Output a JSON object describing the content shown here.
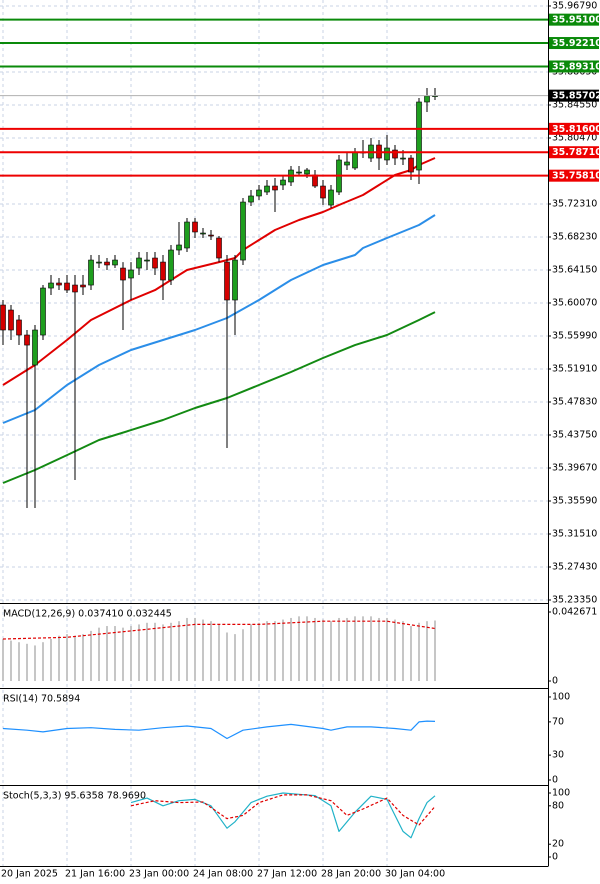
{
  "chart_data": [
    {
      "type": "candlestick",
      "categories": [
        "20 Jan 2025",
        null,
        null,
        null,
        null,
        null,
        null,
        null,
        "21 Jan 16:00",
        null,
        null,
        null,
        null,
        null,
        null,
        null,
        "23 Jan 00:00",
        null,
        null,
        null,
        null,
        null,
        null,
        null,
        "24 Jan 08:00",
        null,
        null,
        null,
        null,
        null,
        null,
        null,
        "27 Jan 12:00",
        null,
        null,
        null,
        null,
        null,
        null,
        null,
        "28 Jan 20:00",
        null,
        null,
        null,
        null,
        null,
        null,
        null,
        "30 Jan 04:00",
        null,
        null,
        null,
        null,
        null,
        null
      ],
      "open": [
        35.5982,
        35.592,
        35.5797,
        35.5611,
        35.524,
        35.5611,
        35.6192,
        35.6254,
        35.6254,
        35.6229,
        35.6229,
        35.6229,
        35.6513,
        35.6513,
        35.6477,
        35.6439,
        35.6316,
        35.6439,
        35.6538,
        35.6563,
        35.6513,
        35.6291,
        35.6662,
        35.6687,
        35.7008,
        35.6872,
        35.6847,
        35.681,
        35.6513,
        35.6044,
        35.6538,
        35.7255,
        35.733,
        35.7379,
        35.7453,
        35.7466,
        35.7503,
        35.7626,
        35.7602,
        35.7589,
        35.7453,
        35.7218,
        35.7379,
        35.7713,
        35.7676,
        35.7874,
        35.7799,
        35.796,
        35.7775,
        35.7898,
        35.7799,
        35.7799,
        35.7651,
        35.8492,
        35.8566
      ],
      "high": [
        35.6044,
        35.5982,
        35.5858,
        35.5673,
        35.5735,
        35.6229,
        35.6353,
        35.6316,
        35.6353,
        35.6353,
        35.6353,
        35.66,
        35.66,
        35.6563,
        35.66,
        35.6513,
        35.6513,
        35.6637,
        35.6637,
        35.6637,
        35.66,
        35.6724,
        35.7008,
        35.7058,
        35.7058,
        35.6934,
        35.6909,
        35.6835,
        35.66,
        35.66,
        35.7305,
        35.7404,
        35.7466,
        35.7527,
        35.7552,
        35.7589,
        35.7701,
        35.7701,
        35.7676,
        35.7651,
        35.7527,
        35.7466,
        35.7837,
        35.7874,
        35.7923,
        35.8022,
        35.8047,
        35.8022,
        35.8084,
        35.796,
        35.7898,
        35.7837,
        35.8541,
        35.8665,
        35.8665
      ],
      "low": [
        35.5487,
        35.5549,
        35.5487,
        35.3472,
        35.3472,
        35.5549,
        35.6106,
        35.6167,
        35.613,
        35.3818,
        35.6106,
        35.6167,
        35.6439,
        35.6415,
        35.6439,
        35.5673,
        35.6044,
        35.6353,
        35.6415,
        35.6353,
        35.6044,
        35.6229,
        35.66,
        35.6637,
        35.681,
        35.681,
        35.6786,
        35.6513,
        35.4214,
        35.5611,
        35.6477,
        35.7206,
        35.728,
        35.7342,
        35.7132,
        35.7404,
        35.7453,
        35.7577,
        35.7552,
        35.7429,
        35.7218,
        35.7181,
        35.7342,
        35.7651,
        35.7651,
        35.7799,
        35.775,
        35.7651,
        35.7713,
        35.7713,
        35.7713,
        35.7527,
        35.7478,
        35.8368,
        35.8517
      ],
      "close": [
        35.5673,
        35.5673,
        35.5611,
        35.5487,
        35.5673,
        35.6192,
        35.6254,
        35.6229,
        35.6167,
        35.6143,
        35.6205,
        35.6538,
        35.6513,
        35.6477,
        35.6538,
        35.6291,
        35.6415,
        35.6563,
        35.6538,
        35.6439,
        35.6291,
        35.6662,
        35.6724,
        35.7008,
        35.6885,
        35.6872,
        35.6835,
        35.6563,
        35.6044,
        35.6538,
        35.7255,
        35.733,
        35.7404,
        35.7453,
        35.7404,
        35.7527,
        35.7651,
        35.7626,
        35.7651,
        35.7453,
        35.7305,
        35.7404,
        35.7775,
        35.775,
        35.7874,
        35.7874,
        35.796,
        35.7799,
        35.7923,
        35.7799,
        35.7799,
        35.7626,
        35.8492,
        35.8566,
        35.85702
      ],
      "up_color": "#1e9e1e",
      "down_color": "#d40000",
      "lines": [
        {
          "color": "#e00000",
          "x": [
            0,
            4,
            8,
            11,
            16,
            19,
            21,
            23,
            27,
            29,
            30,
            32,
            34,
            37,
            40,
            42,
            45,
            47,
            49,
            51,
            52,
            54
          ],
          "values": [
            35.4993,
            35.524,
            35.5549,
            35.5797,
            35.6044,
            35.6167,
            35.6291,
            35.6415,
            35.6513,
            35.6563,
            35.6662,
            35.6786,
            35.6909,
            35.7033,
            35.7132,
            35.7218,
            35.7342,
            35.7466,
            35.7589,
            35.7651,
            35.7713,
            35.7799
          ]
        },
        {
          "color": "#2b8ee8",
          "x": [
            0,
            4,
            8,
            12,
            16,
            20,
            24,
            28,
            32,
            36,
            40,
            44,
            45,
            48,
            52,
            54
          ],
          "values": [
            35.4523,
            35.4684,
            35.4993,
            35.524,
            35.5426,
            35.5549,
            35.5673,
            35.5821,
            35.6044,
            35.6291,
            35.6477,
            35.66,
            35.6687,
            35.681,
            35.6971,
            35.7095
          ]
        },
        {
          "color": "#138a13",
          "x": [
            0,
            4,
            8,
            12,
            16,
            20,
            24,
            28,
            32,
            36,
            40,
            44,
            48,
            52,
            54
          ],
          "values": [
            35.3781,
            35.3942,
            35.4127,
            35.4313,
            35.4436,
            35.456,
            35.4709,
            35.4832,
            35.4993,
            35.5154,
            35.5327,
            35.5487,
            35.5611,
            35.5797,
            35.5895
          ]
        }
      ],
      "levels": [
        {
          "value": 35.951,
          "label": "35.95100",
          "color": "#0a8a0a"
        },
        {
          "value": 35.9221,
          "label": "35.92210",
          "color": "#0a8a0a"
        },
        {
          "value": 35.8931,
          "label": "35.89310",
          "color": "#0a8a0a"
        },
        {
          "value": 35.816,
          "label": "35.81600",
          "color": "#ee0000"
        },
        {
          "value": 35.7871,
          "label": "35.78710",
          "color": "#ee0000"
        },
        {
          "value": 35.7581,
          "label": "35.75810",
          "color": "#ee0000"
        }
      ],
      "current": {
        "value": 35.85702,
        "label": "35.85702"
      },
      "ylim": [
        35.2335,
        35.9753
      ],
      "yticks": [
        {
          "value": 35.9679,
          "label": "35.96790"
        },
        {
          "value": 35.8863,
          "label": "35.88630"
        },
        {
          "value": 35.8455,
          "label": "35.84550"
        },
        {
          "value": 35.8047,
          "label": "35.80470"
        },
        {
          "value": 35.7231,
          "label": "35.72310"
        },
        {
          "value": 35.6823,
          "label": "35.68230"
        },
        {
          "value": 35.6415,
          "label": "35.64150"
        },
        {
          "value": 35.6007,
          "label": "35.60070"
        },
        {
          "value": 35.5599,
          "label": "35.55990"
        },
        {
          "value": 35.5191,
          "label": "35.51910"
        },
        {
          "value": 35.4783,
          "label": "35.47830"
        },
        {
          "value": 35.4375,
          "label": "35.43750"
        },
        {
          "value": 35.3967,
          "label": "35.39670"
        },
        {
          "value": 35.3559,
          "label": "35.35590"
        },
        {
          "value": 35.3151,
          "label": "35.31510"
        },
        {
          "value": 35.2743,
          "label": "35.27430"
        },
        {
          "value": 35.2335,
          "label": "35.23350"
        }
      ],
      "grid": true
    },
    {
      "type": "macd",
      "title": "MACD(12,26,9) 0.037410 0.032445",
      "series": [
        {
          "style": "histogram",
          "color": "#b4b4b4",
          "values": [
            0.026,
            0.025,
            0.024,
            0.023,
            0.022,
            0.024,
            0.026,
            0.028,
            0.029,
            0.028,
            0.029,
            0.031,
            0.033,
            0.034,
            0.034,
            0.033,
            0.034,
            0.035,
            0.036,
            0.036,
            0.035,
            0.036,
            0.037,
            0.039,
            0.039,
            0.038,
            0.037,
            0.035,
            0.03,
            0.029,
            0.032,
            0.035,
            0.036,
            0.037,
            0.037,
            0.038,
            0.039,
            0.04,
            0.04,
            0.039,
            0.038,
            0.037,
            0.039,
            0.039,
            0.04,
            0.04,
            0.04,
            0.039,
            0.039,
            0.038,
            0.037,
            0.034,
            0.036,
            0.037,
            0.03741
          ]
        },
        {
          "style": "dashed",
          "color": "#e00000",
          "x": [
            0,
            8,
            16,
            24,
            32,
            40,
            48,
            54
          ],
          "values": [
            0.026,
            0.027,
            0.031,
            0.035,
            0.035,
            0.037,
            0.037,
            0.032445
          ]
        }
      ],
      "ylim": [
        -0.0037,
        0.047
      ],
      "yticks": [
        0.042671,
        0
      ]
    },
    {
      "type": "rsi",
      "title": "RSI(14) 70.5894",
      "series": [
        {
          "style": "line",
          "color": "#1e90ff",
          "x": [
            0,
            3,
            5,
            8,
            11,
            14,
            17,
            20,
            23,
            26,
            28,
            30,
            33,
            36,
            40,
            41,
            43,
            46,
            49,
            51,
            52,
            53,
            54
          ],
          "values": [
            62,
            60,
            58,
            62,
            63,
            61,
            60,
            63,
            65,
            62,
            50,
            60,
            64,
            67,
            62,
            60,
            64,
            64,
            62,
            60,
            70,
            71,
            70.5894
          ]
        }
      ],
      "ylim": [
        -3.6,
        108.4
      ],
      "yticks": [
        100,
        70,
        30,
        0
      ]
    },
    {
      "type": "stochastic",
      "title": "Stoch(5,3,3) 95.6358 78.9690",
      "series": [
        {
          "style": "line",
          "color": "#20b2c8",
          "x": [
            16,
            18,
            20,
            22,
            24,
            26,
            28,
            29,
            31,
            33,
            35,
            37,
            39,
            41,
            42,
            44,
            46,
            48,
            50,
            51,
            52,
            53,
            54
          ],
          "values": [
            85,
            92,
            80,
            88,
            90,
            80,
            45,
            55,
            85,
            95,
            100,
            98,
            96,
            80,
            40,
            70,
            95,
            90,
            40,
            30,
            60,
            85,
            95.6358
          ]
        },
        {
          "style": "dashed",
          "color": "#e00000",
          "x": [
            16,
            19,
            22,
            25,
            28,
            30,
            32,
            35,
            38,
            41,
            43,
            45,
            48,
            50,
            52,
            54
          ],
          "values": [
            80,
            88,
            85,
            86,
            60,
            65,
            85,
            97,
            97,
            88,
            65,
            75,
            92,
            65,
            50,
            78.969
          ]
        }
      ],
      "ylim": [
        -12.5,
        109.4
      ],
      "yticks": [
        100,
        80,
        20,
        0
      ]
    }
  ]
}
